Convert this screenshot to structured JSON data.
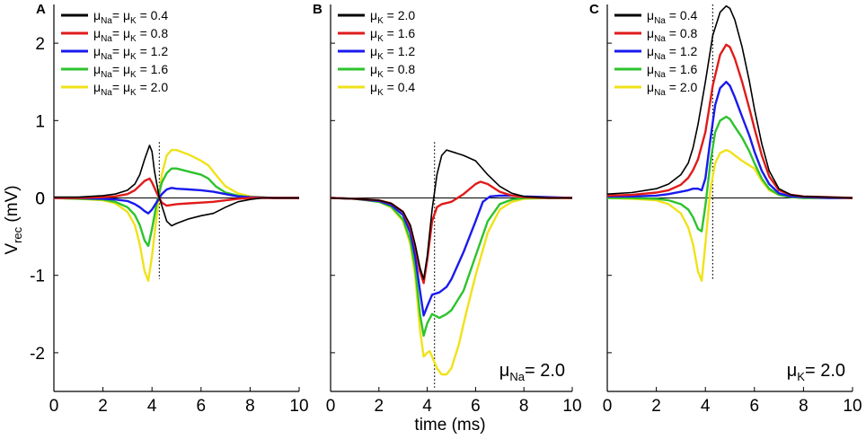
{
  "figure": {
    "ylabel_main": "V",
    "ylabel_sub": "rec",
    "ylabel_unit": " (mV)",
    "xlabel": "time (ms)"
  },
  "chart_data": [
    {
      "type": "line",
      "panel": "A",
      "xlim": [
        0,
        10
      ],
      "ylim": [
        -2.5,
        2.5
      ],
      "xticks": [
        "0",
        "2",
        "4",
        "6",
        "8",
        "10"
      ],
      "yticks": [
        "-2",
        "-1",
        "0",
        "1",
        "2"
      ],
      "xlabel": "",
      "ylabel": "Vrec (mV)",
      "dotted_vline_x": 4.3,
      "annotation": null,
      "legend": [
        {
          "sym": "μ",
          "sub": "Na",
          "mid": "= μ",
          "sub2": "K",
          "value": "= 0.4",
          "color": "#000000"
        },
        {
          "sym": "μ",
          "sub": "Na",
          "mid": "= μ",
          "sub2": "K",
          "value": "= 0.8",
          "color": "#e01b1b"
        },
        {
          "sym": "μ",
          "sub": "Na",
          "mid": "= μ",
          "sub2": "K",
          "value": "= 1.2",
          "color": "#1a1aee"
        },
        {
          "sym": "μ",
          "sub": "Na",
          "mid": "= μ",
          "sub2": "K",
          "value": "= 1.6",
          "color": "#2dc32d"
        },
        {
          "sym": "μ",
          "sub": "Na",
          "mid": "= μ",
          "sub2": "K",
          "value": "= 2.0",
          "color": "#f0e21a"
        }
      ],
      "series": [
        {
          "name": "μNa=μK=0.4",
          "color": "#000000",
          "x": [
            0,
            1,
            2,
            2.5,
            3,
            3.3,
            3.5,
            3.7,
            3.9,
            4.0,
            4.1,
            4.3,
            4.6,
            4.8,
            5.0,
            5.5,
            6.0,
            6.5,
            7.0,
            7.5,
            8.0,
            8.5,
            9,
            10
          ],
          "y": [
            0.01,
            0.01,
            0.03,
            0.05,
            0.1,
            0.18,
            0.3,
            0.5,
            0.68,
            0.6,
            0.35,
            0.0,
            -0.3,
            -0.36,
            -0.33,
            -0.27,
            -0.23,
            -0.2,
            -0.12,
            -0.05,
            -0.02,
            0,
            0,
            0
          ]
        },
        {
          "name": "μNa=μK=0.8",
          "color": "#e01b1b",
          "x": [
            0,
            1,
            2,
            2.5,
            3,
            3.3,
            3.5,
            3.7,
            3.9,
            4.0,
            4.2,
            4.4,
            4.6,
            5.0,
            5.5,
            6.0,
            6.5,
            7.0,
            7.5,
            8,
            9,
            10
          ],
          "y": [
            0,
            0,
            0.01,
            0.02,
            0.05,
            0.1,
            0.16,
            0.22,
            0.25,
            0.2,
            0.06,
            -0.06,
            -0.1,
            -0.08,
            -0.07,
            -0.06,
            -0.05,
            -0.03,
            -0.01,
            0,
            0,
            0
          ]
        },
        {
          "name": "μNa=μK=1.2",
          "color": "#1a1aee",
          "x": [
            0,
            1,
            2,
            2.5,
            3,
            3.3,
            3.5,
            3.7,
            3.85,
            4.0,
            4.2,
            4.4,
            4.6,
            4.8,
            5.0,
            5.5,
            6.0,
            6.5,
            7.0,
            7.5,
            8,
            9,
            10
          ],
          "y": [
            0,
            0,
            -0.01,
            -0.02,
            -0.04,
            -0.08,
            -0.12,
            -0.17,
            -0.2,
            -0.15,
            -0.05,
            0.05,
            0.11,
            0.13,
            0.12,
            0.11,
            0.1,
            0.08,
            0.05,
            0.02,
            0.01,
            0,
            0
          ]
        },
        {
          "name": "μNa=μK=1.6",
          "color": "#2dc32d",
          "x": [
            0,
            1,
            2,
            2.5,
            3,
            3.3,
            3.5,
            3.7,
            3.85,
            4.0,
            4.2,
            4.4,
            4.6,
            4.8,
            5.0,
            5.5,
            6.0,
            6.3,
            6.6,
            7.0,
            7.5,
            8,
            9,
            10
          ],
          "y": [
            0,
            -0.01,
            -0.02,
            -0.05,
            -0.12,
            -0.22,
            -0.35,
            -0.55,
            -0.62,
            -0.4,
            -0.05,
            0.2,
            0.32,
            0.38,
            0.38,
            0.34,
            0.3,
            0.25,
            0.15,
            0.07,
            0.03,
            0.01,
            0,
            0
          ]
        },
        {
          "name": "μNa=μK=2.0",
          "color": "#f0e21a",
          "x": [
            0,
            1,
            2,
            2.5,
            3,
            3.3,
            3.5,
            3.7,
            3.85,
            4.0,
            4.2,
            4.4,
            4.6,
            4.8,
            5.0,
            5.5,
            6.0,
            6.3,
            6.6,
            7.0,
            7.5,
            8,
            9,
            10
          ],
          "y": [
            0,
            -0.01,
            -0.03,
            -0.07,
            -0.18,
            -0.35,
            -0.6,
            -0.95,
            -1.07,
            -0.75,
            -0.2,
            0.3,
            0.55,
            0.62,
            0.62,
            0.56,
            0.48,
            0.42,
            0.3,
            0.15,
            0.06,
            0.02,
            0,
            0
          ]
        }
      ]
    },
    {
      "type": "line",
      "panel": "B",
      "xlim": [
        0,
        10
      ],
      "ylim": [
        -2.5,
        2.5
      ],
      "xticks": [
        "0",
        "2",
        "4",
        "6",
        "8",
        "10"
      ],
      "yticks": [
        "-2",
        "-1",
        "0",
        "1",
        "2"
      ],
      "xlabel": "time (ms)",
      "ylabel": "",
      "dotted_vline_x": 4.3,
      "annotation": {
        "sym": "μ",
        "sub": "Na",
        "text": "= 2.0"
      },
      "legend": [
        {
          "sym": "μ",
          "sub": "K",
          "mid": "",
          "sub2": "",
          "value": "= 2.0",
          "color": "#000000"
        },
        {
          "sym": "μ",
          "sub": "K",
          "mid": "",
          "sub2": "",
          "value": "= 1.6",
          "color": "#e01b1b"
        },
        {
          "sym": "μ",
          "sub": "K",
          "mid": "",
          "sub2": "",
          "value": "= 1.2",
          "color": "#1a1aee"
        },
        {
          "sym": "μ",
          "sub": "K",
          "mid": "",
          "sub2": "",
          "value": "= 0.8",
          "color": "#2dc32d"
        },
        {
          "sym": "μ",
          "sub": "K",
          "mid": "",
          "sub2": "",
          "value": "= 0.4",
          "color": "#f0e21a"
        }
      ],
      "series": [
        {
          "name": "μK=2.0",
          "color": "#000000",
          "x": [
            0,
            1,
            2,
            2.5,
            3,
            3.3,
            3.5,
            3.7,
            3.85,
            4.0,
            4.2,
            4.4,
            4.6,
            4.8,
            5.0,
            5.5,
            6.0,
            6.5,
            7.0,
            7.5,
            8,
            9,
            10
          ],
          "y": [
            0,
            -0.01,
            -0.03,
            -0.07,
            -0.18,
            -0.35,
            -0.6,
            -0.9,
            -1.05,
            -0.75,
            -0.15,
            0.3,
            0.55,
            0.62,
            0.6,
            0.55,
            0.48,
            0.3,
            0.15,
            0.06,
            0.02,
            0,
            0
          ]
        },
        {
          "name": "μK=1.6",
          "color": "#e01b1b",
          "x": [
            0,
            1,
            2,
            2.5,
            3,
            3.3,
            3.5,
            3.7,
            3.85,
            4.0,
            4.2,
            4.4,
            4.6,
            5.0,
            5.5,
            6.0,
            6.2,
            6.5,
            7.0,
            7.5,
            8,
            9,
            10
          ],
          "y": [
            0,
            -0.01,
            -0.03,
            -0.07,
            -0.18,
            -0.38,
            -0.62,
            -0.95,
            -1.1,
            -0.8,
            -0.3,
            -0.12,
            -0.08,
            -0.05,
            0.05,
            0.18,
            0.21,
            0.18,
            0.08,
            0.03,
            0.01,
            0,
            0
          ]
        },
        {
          "name": "μK=1.2",
          "color": "#1a1aee",
          "x": [
            0,
            1,
            2,
            2.5,
            3,
            3.3,
            3.5,
            3.7,
            3.85,
            4.0,
            4.2,
            4.5,
            4.8,
            5.0,
            5.5,
            6.0,
            6.3,
            6.6,
            7.0,
            7.5,
            8,
            9,
            10
          ],
          "y": [
            0,
            -0.01,
            -0.04,
            -0.09,
            -0.22,
            -0.45,
            -0.75,
            -1.2,
            -1.52,
            -1.4,
            -1.25,
            -1.22,
            -1.15,
            -1.05,
            -0.7,
            -0.3,
            -0.05,
            0.02,
            0.03,
            0.03,
            0.02,
            0.01,
            0
          ]
        },
        {
          "name": "μK=0.8",
          "color": "#2dc32d",
          "x": [
            0,
            1,
            2,
            2.5,
            3,
            3.3,
            3.5,
            3.7,
            3.85,
            4.0,
            4.2,
            4.5,
            4.8,
            5.0,
            5.5,
            6.0,
            6.5,
            7.0,
            7.5,
            8,
            9,
            10
          ],
          "y": [
            0,
            -0.01,
            -0.05,
            -0.11,
            -0.28,
            -0.55,
            -0.9,
            -1.5,
            -1.78,
            -1.62,
            -1.5,
            -1.55,
            -1.5,
            -1.45,
            -1.2,
            -0.75,
            -0.3,
            -0.08,
            -0.02,
            0,
            0,
            0
          ]
        },
        {
          "name": "μK=0.4",
          "color": "#f0e21a",
          "x": [
            0,
            1,
            2,
            2.5,
            3,
            3.3,
            3.5,
            3.7,
            3.85,
            4.0,
            4.1,
            4.2,
            4.4,
            4.6,
            4.8,
            5.0,
            5.3,
            5.6,
            6.0,
            6.5,
            7.0,
            7.5,
            8,
            9,
            10
          ],
          "y": [
            0,
            -0.01,
            -0.05,
            -0.12,
            -0.3,
            -0.6,
            -1.0,
            -1.7,
            -2.05,
            -2.0,
            -1.98,
            -2.05,
            -2.2,
            -2.28,
            -2.28,
            -2.2,
            -1.9,
            -1.5,
            -1.0,
            -0.45,
            -0.15,
            -0.05,
            -0.01,
            0,
            0
          ]
        }
      ]
    },
    {
      "type": "line",
      "panel": "C",
      "xlim": [
        0,
        10
      ],
      "ylim": [
        -2.5,
        2.5
      ],
      "xticks": [
        "0",
        "2",
        "4",
        "6",
        "8",
        "10"
      ],
      "yticks": [
        "-2",
        "-1",
        "0",
        "1",
        "2"
      ],
      "xlabel": "",
      "ylabel": "",
      "dotted_vline_x": 4.3,
      "annotation": {
        "sym": "μ",
        "sub": "K",
        "text": "= 2.0"
      },
      "legend": [
        {
          "sym": "μ",
          "sub": "Na",
          "mid": "",
          "sub2": "",
          "value": "= 0.4",
          "color": "#000000"
        },
        {
          "sym": "μ",
          "sub": "Na",
          "mid": "",
          "sub2": "",
          "value": "= 0.8",
          "color": "#e01b1b"
        },
        {
          "sym": "μ",
          "sub": "Na",
          "mid": "",
          "sub2": "",
          "value": "= 1.2",
          "color": "#1a1aee"
        },
        {
          "sym": "μ",
          "sub": "Na",
          "mid": "",
          "sub2": "",
          "value": "= 1.6",
          "color": "#2dc32d"
        },
        {
          "sym": "μ",
          "sub": "Na",
          "mid": "",
          "sub2": "",
          "value": "= 2.0",
          "color": "#f0e21a"
        }
      ],
      "series": [
        {
          "name": "μNa=0.4",
          "color": "#000000",
          "x": [
            0,
            1,
            2,
            2.5,
            3,
            3.3,
            3.5,
            3.7,
            4.0,
            4.3,
            4.6,
            4.85,
            5.0,
            5.2,
            5.5,
            5.8,
            6.0,
            6.3,
            6.6,
            7.0,
            7.5,
            8,
            9,
            10
          ],
          "y": [
            0.05,
            0.07,
            0.12,
            0.18,
            0.3,
            0.45,
            0.65,
            0.95,
            1.5,
            2.1,
            2.4,
            2.48,
            2.45,
            2.3,
            1.95,
            1.5,
            1.15,
            0.7,
            0.35,
            0.12,
            0.04,
            0.02,
            0.01,
            0
          ]
        },
        {
          "name": "μNa=0.8",
          "color": "#e01b1b",
          "x": [
            0,
            1,
            2,
            2.5,
            3,
            3.3,
            3.5,
            3.7,
            4.0,
            4.3,
            4.6,
            4.85,
            5.0,
            5.2,
            5.5,
            5.8,
            6.0,
            6.3,
            6.6,
            7.0,
            7.5,
            8,
            9,
            10
          ],
          "y": [
            0.03,
            0.04,
            0.07,
            0.1,
            0.17,
            0.26,
            0.36,
            0.5,
            0.85,
            1.45,
            1.85,
            1.98,
            1.95,
            1.8,
            1.5,
            1.15,
            0.9,
            0.55,
            0.28,
            0.1,
            0.04,
            0.02,
            0.01,
            0
          ]
        },
        {
          "name": "μNa=1.2",
          "color": "#1a1aee",
          "x": [
            0,
            1,
            2,
            2.5,
            3,
            3.3,
            3.5,
            3.7,
            3.85,
            4.0,
            4.2,
            4.4,
            4.6,
            4.85,
            5.0,
            5.2,
            5.5,
            5.8,
            6.0,
            6.3,
            6.6,
            7.0,
            7.5,
            8,
            9,
            10
          ],
          "y": [
            0.02,
            0.02,
            0.03,
            0.05,
            0.08,
            0.1,
            0.12,
            0.12,
            0.1,
            0.25,
            0.75,
            1.2,
            1.42,
            1.5,
            1.45,
            1.3,
            1.05,
            0.8,
            0.6,
            0.35,
            0.18,
            0.06,
            0.02,
            0.01,
            0,
            0
          ]
        },
        {
          "name": "μNa=1.6",
          "color": "#2dc32d",
          "x": [
            0,
            1,
            2,
            2.5,
            3,
            3.3,
            3.5,
            3.7,
            3.85,
            4.0,
            4.2,
            4.4,
            4.6,
            4.85,
            5.0,
            5.2,
            5.5,
            5.8,
            6.0,
            6.3,
            6.6,
            7.0,
            7.5,
            8,
            9,
            10
          ],
          "y": [
            0,
            0,
            -0.01,
            -0.03,
            -0.08,
            -0.15,
            -0.25,
            -0.4,
            -0.43,
            -0.1,
            0.45,
            0.85,
            1.0,
            1.05,
            1.02,
            0.92,
            0.78,
            0.6,
            0.45,
            0.25,
            0.12,
            0.04,
            0.01,
            0,
            0,
            0
          ]
        },
        {
          "name": "μNa=2.0",
          "color": "#f0e21a",
          "x": [
            0,
            1,
            2,
            2.5,
            3,
            3.3,
            3.5,
            3.7,
            3.85,
            4.0,
            4.2,
            4.4,
            4.6,
            4.85,
            5.0,
            5.2,
            5.5,
            5.8,
            6.0,
            6.3,
            6.6,
            7.0,
            7.5,
            8,
            9,
            10
          ],
          "y": [
            0,
            -0.01,
            -0.03,
            -0.08,
            -0.2,
            -0.38,
            -0.6,
            -0.95,
            -1.07,
            -0.6,
            0.1,
            0.45,
            0.58,
            0.62,
            0.6,
            0.55,
            0.48,
            0.42,
            0.38,
            0.22,
            0.1,
            0.04,
            0.01,
            0,
            0,
            0
          ]
        }
      ]
    }
  ]
}
